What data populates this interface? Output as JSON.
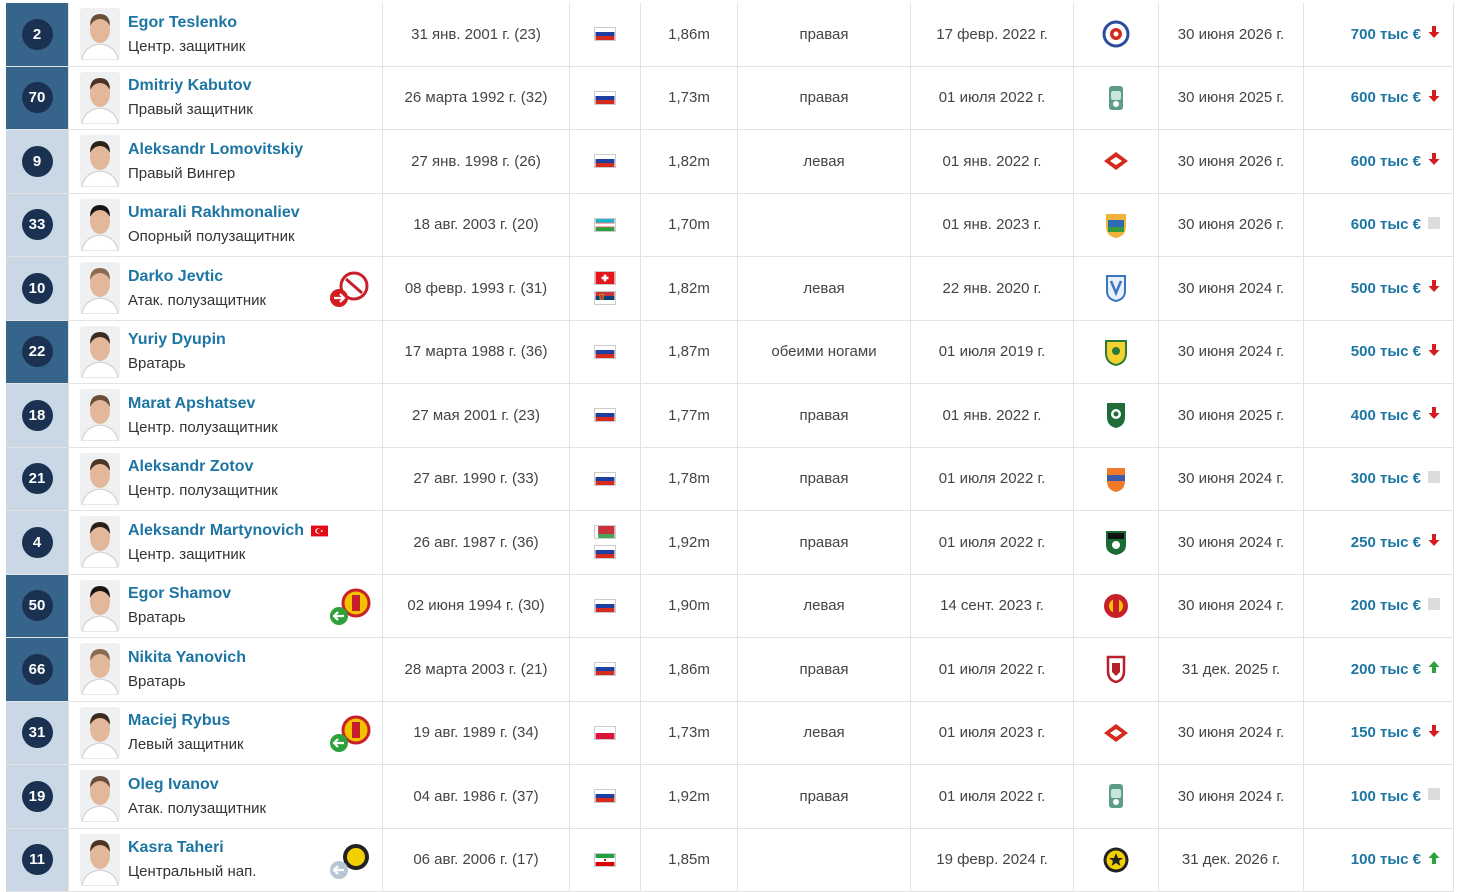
{
  "colors": {
    "link": "#1d75a3",
    "num_badge": "#1a3151",
    "num_col_light": "#c9d8e4",
    "num_col_dark": "#36648b",
    "down": "#d41d21",
    "up": "#2fa13a",
    "neutral": "#dcdcdc"
  },
  "rows": [
    {
      "num": "2",
      "name": "Egor Teslenko",
      "pos": "Центр. защитник",
      "dob": "31 янв. 2001 г. (23)",
      "flags": [
        "ru"
      ],
      "height": "1,86m",
      "foot": "правая",
      "joined": "17 февр. 2022 г.",
      "club": "ball-crest-icon",
      "contract": "30 июня 2026 г.",
      "value": "700 тыс €",
      "trend": "down",
      "shade": "dark",
      "extra_flag": "",
      "loan": ""
    },
    {
      "num": "70",
      "name": "Dmitriy Kabutov",
      "pos": "Правый защитник",
      "dob": "26 марта 1992 г. (32)",
      "flags": [
        "ru"
      ],
      "height": "1,73m",
      "foot": "правая",
      "joined": "01 июля 2022 г.",
      "club": "green-crest-icon",
      "contract": "30 июня 2025 г.",
      "value": "600 тыс €",
      "trend": "down",
      "shade": "dark",
      "extra_flag": "",
      "loan": ""
    },
    {
      "num": "9",
      "name": "Aleksandr Lomovitskiy",
      "pos": "Правый Вингер",
      "dob": "27 янв. 1998 г. (26)",
      "flags": [
        "ru"
      ],
      "height": "1,82m",
      "foot": "левая",
      "joined": "01 янв. 2022 г.",
      "club": "spartak-crest-icon",
      "contract": "30 июня 2026 г.",
      "value": "600 тыс €",
      "trend": "down",
      "shade": "light",
      "extra_flag": "",
      "loan": ""
    },
    {
      "num": "33",
      "name": "Umarali Rakhmonaliev",
      "pos": "Опорный полузащитник",
      "dob": "18 авг. 2003 г. (20)",
      "flags": [
        "uz"
      ],
      "height": "1,70m",
      "foot": "",
      "joined": "01 янв. 2023 г.",
      "club": "shield-crest-icon",
      "contract": "30 июня 2026 г.",
      "value": "600 тыс €",
      "trend": "neutral",
      "shade": "light",
      "extra_flag": "",
      "loan": ""
    },
    {
      "num": "10",
      "name": "Darko Jevtic",
      "pos": "Атак. полузащитник",
      "dob": "08 февр. 1993 г. (31)",
      "flags": [
        "ch",
        "rs"
      ],
      "height": "1,82m",
      "foot": "левая",
      "joined": "22 янв. 2020 г.",
      "club": "blue-crest-icon",
      "contract": "30 июня 2024 г.",
      "value": "500 тыс €",
      "trend": "down",
      "shade": "light",
      "extra_flag": "",
      "loan": "out"
    },
    {
      "num": "22",
      "name": "Yuriy Dyupin",
      "pos": "Вратарь",
      "dob": "17 марта 1988 г. (36)",
      "flags": [
        "ru"
      ],
      "height": "1,87m",
      "foot": "обеими ногами",
      "joined": "01 июля 2019 г.",
      "club": "yellow-crest-icon",
      "contract": "30 июня 2024 г.",
      "value": "500 тыс €",
      "trend": "down",
      "shade": "dark",
      "extra_flag": "",
      "loan": ""
    },
    {
      "num": "18",
      "name": "Marat Apshatsev",
      "pos": "Центр. полузащитник",
      "dob": "27 мая 2001 г. (23)",
      "flags": [
        "ru"
      ],
      "height": "1,77m",
      "foot": "правая",
      "joined": "01 янв. 2022 г.",
      "club": "akhmat-crest-icon",
      "contract": "30 июня 2025 г.",
      "value": "400 тыс €",
      "trend": "down",
      "shade": "light",
      "extra_flag": "",
      "loan": ""
    },
    {
      "num": "21",
      "name": "Aleksandr Zotov",
      "pos": "Центр. полузащитник",
      "dob": "27 авг. 1990 г. (33)",
      "flags": [
        "ru"
      ],
      "height": "1,78m",
      "foot": "правая",
      "joined": "01 июля 2022 г.",
      "club": "orange-crest-icon",
      "contract": "30 июня 2024 г.",
      "value": "300 тыс €",
      "trend": "neutral",
      "shade": "light",
      "extra_flag": "",
      "loan": ""
    },
    {
      "num": "4",
      "name": "Aleksandr Martynovich",
      "pos": "Центр. защитник",
      "dob": "26 авг. 1987 г. (36)",
      "flags": [
        "by",
        "ru"
      ],
      "height": "1,92m",
      "foot": "правая",
      "joined": "01 июля 2022 г.",
      "club": "krasnodar-crest-icon",
      "contract": "30 июня 2024 г.",
      "value": "250 тыс €",
      "trend": "down",
      "shade": "light",
      "extra_flag": "tr",
      "loan": ""
    },
    {
      "num": "50",
      "name": "Egor Shamov",
      "pos": "Вратарь",
      "dob": "02 июня 1994 г. (30)",
      "flags": [
        "ru"
      ],
      "height": "1,90m",
      "foot": "левая",
      "joined": "14 сент. 2023 г.",
      "club": "arsenal-crest-icon",
      "contract": "30 июня 2024 г.",
      "value": "200 тыс €",
      "trend": "neutral",
      "shade": "dark",
      "extra_flag": "",
      "loan": "in"
    },
    {
      "num": "66",
      "name": "Nikita Yanovich",
      "pos": "Вратарь",
      "dob": "28 марта 2003 г. (21)",
      "flags": [
        "ru"
      ],
      "height": "1,86m",
      "foot": "правая",
      "joined": "01 июля 2022 г.",
      "club": "red-shield-crest-icon",
      "contract": "31 дек. 2025 г.",
      "value": "200 тыс €",
      "trend": "up",
      "shade": "dark",
      "extra_flag": "",
      "loan": ""
    },
    {
      "num": "31",
      "name": "Maciej Rybus",
      "pos": "Левый защитник",
      "dob": "19 авг. 1989 г. (34)",
      "flags": [
        "pl"
      ],
      "height": "1,73m",
      "foot": "левая",
      "joined": "01 июля 2023 г.",
      "club": "spartak-crest-icon",
      "contract": "30 июня 2024 г.",
      "value": "150 тыс €",
      "trend": "down",
      "shade": "light",
      "extra_flag": "",
      "loan": "in"
    },
    {
      "num": "19",
      "name": "Oleg Ivanov",
      "pos": "Атак. полузащитник",
      "dob": "04 авг. 1986 г. (37)",
      "flags": [
        "ru"
      ],
      "height": "1,92m",
      "foot": "правая",
      "joined": "01 июля 2022 г.",
      "club": "green-crest-icon",
      "contract": "30 июня 2024 г.",
      "value": "100 тыс €",
      "trend": "neutral",
      "shade": "light",
      "extra_flag": "",
      "loan": ""
    },
    {
      "num": "11",
      "name": "Kasra Taheri",
      "pos": "Центральный нап.",
      "dob": "06 авг. 2006 г. (17)",
      "flags": [
        "ir"
      ],
      "height": "1,85m",
      "foot": "",
      "joined": "19 февр. 2024 г.",
      "club": "sepahan-crest-icon",
      "contract": "31 дек. 2026 г.",
      "value": "100 тыс €",
      "trend": "up",
      "shade": "light",
      "extra_flag": "",
      "loan": "in-gray"
    }
  ]
}
